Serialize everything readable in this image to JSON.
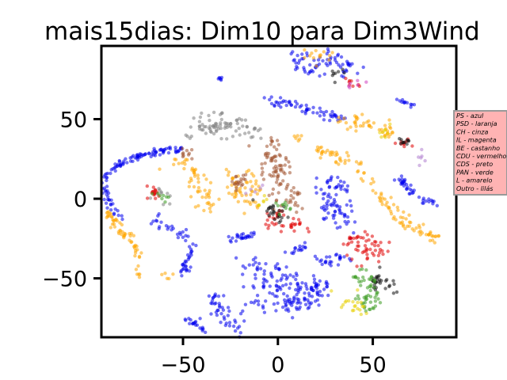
{
  "chart_data": {
    "type": "scatter",
    "title": "mais15dias: Dim10 para Dim3Wind",
    "xlabel": "",
    "ylabel": "",
    "xlim": [
      -93,
      94
    ],
    "ylim": [
      -87,
      96
    ],
    "xticks": [
      -50,
      0,
      50
    ],
    "yticks": [
      50,
      0,
      -50
    ],
    "xtick_labels": [
      "−50",
      "0",
      "50"
    ],
    "ytick_labels": [
      "50",
      "0",
      "−50"
    ],
    "grid": false,
    "legend_position": "right",
    "legend_entries": [
      "PS - azul",
      "PSD - laranja",
      "CH - cinza",
      "IL - magenta",
      "BE - castanho",
      "CDU - vermelho",
      "CDS - preto",
      "PAN - verde",
      "L - amarelo",
      "Outro - lilás"
    ],
    "colors": {
      "azul": "#0000ee",
      "laranja": "#ffa500",
      "cinza": "#808080",
      "magenta": "#d040c0",
      "castanho": "#a0522d",
      "vermelho": "#e00000",
      "preto": "#111111",
      "verde": "#3a9a20",
      "amarelo": "#e8d000",
      "lilas": "#b080d0",
      "legend_bg": "#ffb3b3"
    },
    "clusters": [
      {
        "color": "azul",
        "path": [
          [
            -93,
            12
          ],
          [
            -88,
            18
          ],
          [
            -80,
            24
          ],
          [
            -70,
            28
          ],
          [
            -60,
            30
          ],
          [
            -50,
            31
          ]
        ],
        "spread": 1.2,
        "n": 90
      },
      {
        "color": "azul",
        "path": [
          [
            -93,
            10
          ],
          [
            -90,
            2
          ],
          [
            -88,
            -6
          ],
          [
            -82,
            -12
          ]
        ],
        "spread": 1.2,
        "n": 30
      },
      {
        "color": "azul",
        "path": [
          [
            -65,
            -12
          ],
          [
            -58,
            -18
          ],
          [
            -50,
            -22
          ],
          [
            -45,
            -30
          ],
          [
            -47,
            -38
          ],
          [
            -50,
            -48
          ]
        ],
        "spread": 1.5,
        "n": 55
      },
      {
        "color": "azul",
        "path": [
          [
            -25,
            -26
          ],
          [
            -15,
            -24
          ],
          [
            -12,
            -22
          ]
        ],
        "spread": 1.2,
        "n": 25
      },
      {
        "color": "azul",
        "path": [
          [
            -5,
            62
          ],
          [
            5,
            60
          ],
          [
            15,
            57
          ],
          [
            25,
            53
          ],
          [
            35,
            50
          ]
        ],
        "spread": 1.5,
        "n": 60
      },
      {
        "color": "azul",
        "path": [
          [
            5,
            -33
          ],
          [
            10,
            -32
          ],
          [
            15,
            -30
          ]
        ],
        "spread": 1.2,
        "n": 15
      },
      {
        "color": "azul",
        "path": [
          [
            -35,
            -60
          ],
          [
            -30,
            -70
          ],
          [
            -25,
            -76
          ],
          [
            -20,
            -82
          ]
        ],
        "spread": 3,
        "n": 45
      },
      {
        "color": "azul",
        "path": [
          [
            -50,
            -74
          ],
          [
            -45,
            -78
          ],
          [
            -40,
            -82
          ]
        ],
        "spread": 1.5,
        "n": 20
      },
      {
        "color": "azul",
        "path": [
          [
            -12,
            -44
          ],
          [
            -5,
            -50
          ],
          [
            0,
            -54
          ],
          [
            8,
            -58
          ],
          [
            15,
            -55
          ]
        ],
        "spread": 6,
        "n": 100
      },
      {
        "color": "azul",
        "path": [
          [
            -12,
            -66
          ],
          [
            0,
            -68
          ],
          [
            10,
            -65
          ],
          [
            20,
            -60
          ]
        ],
        "spread": 3.5,
        "n": 55
      },
      {
        "color": "azul",
        "path": [
          [
            20,
            -38
          ],
          [
            25,
            -40
          ],
          [
            30,
            -36
          ],
          [
            38,
            -38
          ]
        ],
        "spread": 2,
        "n": 25
      },
      {
        "color": "azul",
        "path": [
          [
            18,
            -56
          ],
          [
            22,
            -52
          ],
          [
            25,
            -55
          ]
        ],
        "spread": 2,
        "n": 18
      },
      {
        "color": "azul",
        "path": [
          [
            22,
            0
          ],
          [
            30,
            -5
          ],
          [
            35,
            -10
          ],
          [
            32,
            -14
          ]
        ],
        "spread": 4,
        "n": 55
      },
      {
        "color": "azul",
        "path": [
          [
            20,
            8
          ],
          [
            28,
            10
          ],
          [
            35,
            6
          ]
        ],
        "spread": 2,
        "n": 25
      },
      {
        "color": "azul",
        "path": [
          [
            62,
            15
          ],
          [
            68,
            8
          ],
          [
            72,
            2
          ],
          [
            78,
            -2
          ],
          [
            82,
            -3
          ]
        ],
        "spread": 1.2,
        "n": 40
      },
      {
        "color": "azul",
        "path": [
          [
            63,
            62
          ],
          [
            67,
            61
          ],
          [
            71,
            59
          ]
        ],
        "spread": 0.8,
        "n": 12
      },
      {
        "color": "azul",
        "path": [
          [
            -30,
            75
          ],
          [
            -31,
            76
          ]
        ],
        "spread": 0.6,
        "n": 6
      },
      {
        "color": "azul",
        "path": [
          [
            5,
            92
          ],
          [
            10,
            88
          ],
          [
            15,
            82
          ],
          [
            20,
            80
          ],
          [
            25,
            86
          ],
          [
            30,
            90
          ]
        ],
        "spread": 3,
        "n": 50
      },
      {
        "color": "azul",
        "path": [
          [
            30,
            86
          ],
          [
            38,
            82
          ],
          [
            42,
            80
          ]
        ],
        "spread": 3,
        "n": 20
      },
      {
        "color": "laranja",
        "path": [
          [
            -90,
            -8
          ],
          [
            -84,
            -18
          ],
          [
            -78,
            -26
          ],
          [
            -74,
            -36
          ],
          [
            -73,
            -48
          ]
        ],
        "spread": 1.5,
        "n": 60
      },
      {
        "color": "laranja",
        "path": [
          [
            -55,
            25
          ],
          [
            -48,
            18
          ],
          [
            -42,
            10
          ],
          [
            -38,
            0
          ],
          [
            -35,
            -8
          ]
        ],
        "spread": 3,
        "n": 55
      },
      {
        "color": "laranja",
        "path": [
          [
            -25,
            15
          ],
          [
            -22,
            5
          ],
          [
            -24,
            0
          ]
        ],
        "spread": 2,
        "n": 25
      },
      {
        "color": "laranja",
        "path": [
          [
            -15,
            17
          ],
          [
            -12,
            10
          ],
          [
            -13,
            0
          ],
          [
            -15,
            -4
          ]
        ],
        "spread": 2.5,
        "n": 30
      },
      {
        "color": "laranja",
        "path": [
          [
            10,
            40
          ],
          [
            12,
            35
          ]
        ],
        "spread": 1,
        "n": 6
      },
      {
        "color": "laranja",
        "path": [
          [
            32,
            50
          ],
          [
            40,
            48
          ],
          [
            48,
            46
          ],
          [
            55,
            44
          ],
          [
            60,
            40
          ]
        ],
        "spread": 2,
        "n": 45
      },
      {
        "color": "laranja",
        "path": [
          [
            20,
            31
          ],
          [
            30,
            28
          ],
          [
            38,
            22
          ],
          [
            45,
            15
          ],
          [
            52,
            5
          ],
          [
            58,
            -5
          ],
          [
            65,
            -12
          ],
          [
            72,
            -18
          ],
          [
            80,
            -24
          ],
          [
            84,
            -25
          ]
        ],
        "spread": 2,
        "n": 110
      },
      {
        "color": "laranja",
        "path": [
          [
            15,
            92
          ],
          [
            25,
            88
          ]
        ],
        "spread": 4,
        "n": 15
      },
      {
        "color": "laranja",
        "path": [
          [
            -60,
            -48
          ],
          [
            -55,
            -50
          ]
        ],
        "spread": 1,
        "n": 5
      },
      {
        "color": "cinza",
        "path": [
          [
            -45,
            40
          ],
          [
            -35,
            45
          ],
          [
            -25,
            47
          ],
          [
            -15,
            45
          ],
          [
            -10,
            40
          ]
        ],
        "spread": 4,
        "n": 80
      },
      {
        "color": "cinza",
        "path": [
          [
            -63,
            5
          ],
          [
            -60,
            0
          ]
        ],
        "spread": 2,
        "n": 10
      },
      {
        "color": "castanho",
        "path": [
          [
            -5,
            27
          ],
          [
            0,
            20
          ],
          [
            0,
            10
          ],
          [
            5,
            0
          ],
          [
            3,
            -5
          ]
        ],
        "spread": 4,
        "n": 90
      },
      {
        "color": "castanho",
        "path": [
          [
            -20,
            15
          ],
          [
            -18,
            12
          ],
          [
            -22,
            8
          ]
        ],
        "spread": 2,
        "n": 20
      },
      {
        "color": "castanho",
        "path": [
          [
            -50,
            28
          ],
          [
            -45,
            30
          ]
        ],
        "spread": 2,
        "n": 10
      },
      {
        "color": "castanho",
        "path": [
          [
            -3,
            35
          ],
          [
            0,
            34
          ]
        ],
        "spread": 1.5,
        "n": 8
      },
      {
        "color": "vermelho",
        "path": [
          [
            -68,
            5
          ],
          [
            -64,
            2
          ]
        ],
        "spread": 2,
        "n": 15
      },
      {
        "color": "vermelho",
        "path": [
          [
            -5,
            -10
          ],
          [
            5,
            -15
          ],
          [
            12,
            -18
          ]
        ],
        "spread": 3,
        "n": 35
      },
      {
        "color": "vermelho",
        "path": [
          [
            38,
            -28
          ],
          [
            45,
            -25
          ],
          [
            50,
            -30
          ],
          [
            46,
            -38
          ]
        ],
        "spread": 3.5,
        "n": 55
      },
      {
        "color": "vermelho",
        "path": [
          [
            65,
            35
          ],
          [
            70,
            36
          ]
        ],
        "spread": 1.5,
        "n": 10
      },
      {
        "color": "vermelho",
        "path": [
          [
            38,
            75
          ],
          [
            42,
            72
          ]
        ],
        "spread": 2,
        "n": 8
      },
      {
        "color": "preto",
        "path": [
          [
            -5,
            -5
          ],
          [
            0,
            -10
          ],
          [
            5,
            -10
          ]
        ],
        "spread": 3,
        "n": 25
      },
      {
        "color": "preto",
        "path": [
          [
            50,
            -48
          ],
          [
            55,
            -52
          ],
          [
            60,
            -55
          ]
        ],
        "spread": 3,
        "n": 30
      },
      {
        "color": "preto",
        "path": [
          [
            65,
            36
          ],
          [
            68,
            35
          ]
        ],
        "spread": 1.5,
        "n": 10
      },
      {
        "color": "preto",
        "path": [
          [
            30,
            78
          ],
          [
            35,
            80
          ]
        ],
        "spread": 2,
        "n": 8
      },
      {
        "color": "verde",
        "path": [
          [
            42,
            -48
          ],
          [
            48,
            -55
          ],
          [
            52,
            -62
          ],
          [
            45,
            -65
          ]
        ],
        "spread": 3.5,
        "n": 55
      },
      {
        "color": "verde",
        "path": [
          [
            -62,
            2
          ],
          [
            -58,
            0
          ]
        ],
        "spread": 2,
        "n": 8
      },
      {
        "color": "verde",
        "path": [
          [
            0,
            -5
          ],
          [
            5,
            -3
          ]
        ],
        "spread": 2,
        "n": 10
      },
      {
        "color": "amarelo",
        "path": [
          [
            35,
            -62
          ],
          [
            40,
            -68
          ],
          [
            45,
            -70
          ]
        ],
        "spread": 3,
        "n": 20
      },
      {
        "color": "amarelo",
        "path": [
          [
            55,
            42
          ],
          [
            58,
            40
          ]
        ],
        "spread": 2,
        "n": 8
      },
      {
        "color": "amarelo",
        "path": [
          [
            -10,
            -2
          ],
          [
            -5,
            0
          ]
        ],
        "spread": 2,
        "n": 6
      },
      {
        "color": "magenta",
        "path": [
          [
            42,
            75
          ],
          [
            40,
            70
          ]
        ],
        "spread": 2,
        "n": 6
      },
      {
        "color": "lilas",
        "path": [
          [
            75,
            25
          ],
          [
            80,
            28
          ]
        ],
        "spread": 3,
        "n": 6
      },
      {
        "color": "lilas",
        "path": [
          [
            -15,
            5
          ],
          [
            -10,
            8
          ]
        ],
        "spread": 2,
        "n": 5
      }
    ]
  }
}
